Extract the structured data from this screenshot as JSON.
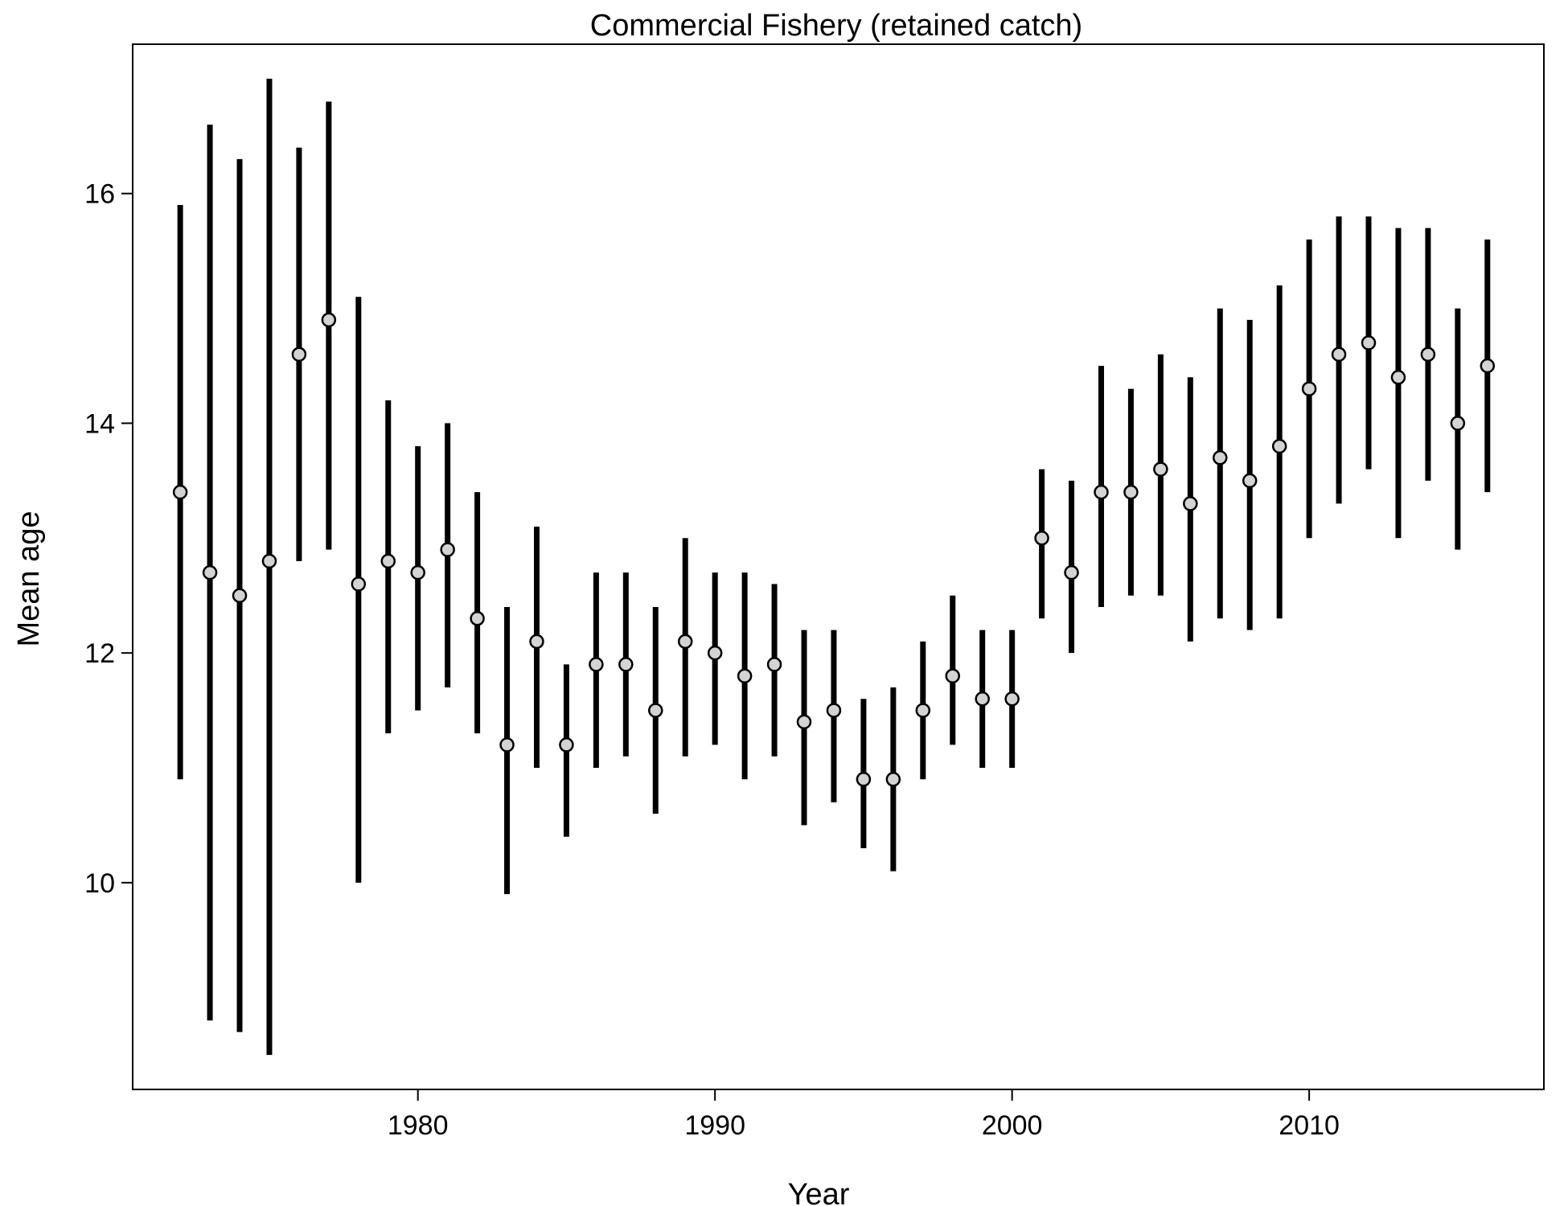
{
  "chart_data": {
    "type": "scatter",
    "title": "Commercial Fishery (retained catch)",
    "xlabel": "Year",
    "ylabel": "Mean age",
    "xlim": [
      1970.4,
      2017.9
    ],
    "ylim": [
      8.2,
      17.3
    ],
    "xticks": [
      1980,
      1990,
      2000,
      2010
    ],
    "yticks": [
      10,
      12,
      14,
      16
    ],
    "xtick_labels": [
      "1980",
      "1990",
      "2000",
      "2010"
    ],
    "ytick_labels": [
      "10",
      "12",
      "14",
      "16"
    ],
    "grid": false,
    "point_color": "#d3d3d3",
    "bar_color": "#000000",
    "series": [
      {
        "x": [
          1972,
          1973,
          1974,
          1975,
          1976,
          1977,
          1978,
          1979,
          1980,
          1981,
          1982,
          1983,
          1984,
          1985,
          1986,
          1987,
          1988,
          1989,
          1990,
          1991,
          1992,
          1993,
          1994,
          1995,
          1996,
          1997,
          1998,
          1999,
          2000,
          2001,
          2002,
          2003,
          2004,
          2005,
          2006,
          2007,
          2008,
          2009,
          2010,
          2011,
          2012,
          2013,
          2014,
          2015,
          2016
        ],
        "y": [
          13.4,
          12.7,
          12.5,
          12.8,
          14.6,
          14.9,
          12.6,
          12.8,
          12.7,
          12.9,
          12.3,
          11.2,
          12.1,
          11.2,
          11.9,
          11.9,
          11.5,
          12.1,
          12.0,
          11.8,
          11.9,
          11.4,
          11.5,
          10.9,
          10.9,
          11.5,
          11.8,
          11.6,
          11.6,
          13.0,
          12.7,
          13.4,
          13.4,
          13.6,
          13.3,
          13.7,
          13.5,
          13.8,
          14.3,
          14.6,
          14.7,
          14.4,
          14.6,
          14.0,
          14.5
        ],
        "lower": [
          10.9,
          8.8,
          8.7,
          8.5,
          12.8,
          12.9,
          10.0,
          11.3,
          11.5,
          11.7,
          11.3,
          9.9,
          11.0,
          10.4,
          11.0,
          11.1,
          10.6,
          11.1,
          11.2,
          10.9,
          11.1,
          10.5,
          10.7,
          10.3,
          10.1,
          10.9,
          11.2,
          11.0,
          11.0,
          12.3,
          12.0,
          12.4,
          12.5,
          12.5,
          12.1,
          12.3,
          12.2,
          12.3,
          13.0,
          13.3,
          13.6,
          13.0,
          13.5,
          12.9,
          13.4
        ],
        "upper": [
          15.9,
          16.6,
          16.3,
          17.0,
          16.4,
          16.8,
          15.1,
          14.2,
          13.8,
          14.0,
          13.4,
          12.4,
          13.1,
          11.9,
          12.7,
          12.7,
          12.4,
          13.0,
          12.7,
          12.7,
          12.6,
          12.2,
          12.2,
          11.6,
          11.7,
          12.1,
          12.5,
          12.2,
          12.2,
          13.6,
          13.5,
          14.5,
          14.3,
          14.6,
          14.4,
          15.0,
          14.9,
          15.2,
          15.6,
          15.8,
          15.8,
          15.7,
          15.7,
          15.0,
          15.6
        ]
      }
    ]
  }
}
